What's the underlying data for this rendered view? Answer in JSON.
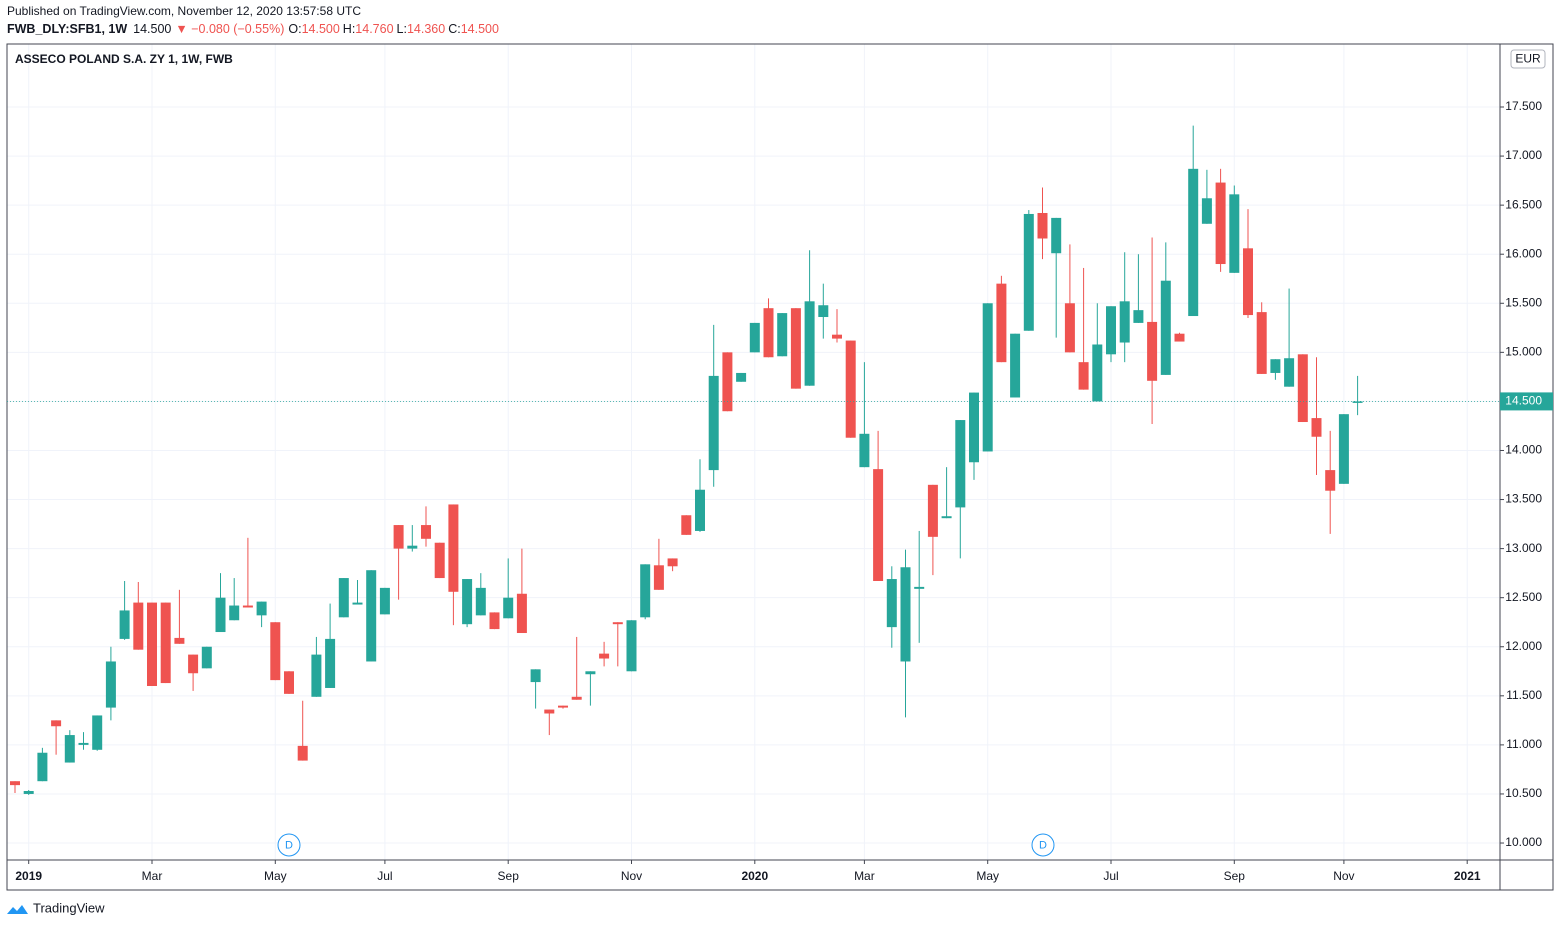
{
  "header": {
    "published": "Published on TradingView.com, November 12, 2020 13:57:58 UTC",
    "symbol": "FWB_DLY:SFB1, 1W",
    "last": "14.500",
    "change": "▼ −0.080 (−0.55%)",
    "ohlc": [
      {
        "key": "O:",
        "value": "14.500"
      },
      {
        "key": "H:",
        "value": "14.760"
      },
      {
        "key": "L:",
        "value": "14.360"
      },
      {
        "key": "C:",
        "value": "14.500"
      }
    ],
    "currency": "EUR",
    "brand": "TradingView"
  },
  "events": [
    {
      "label": "D"
    },
    {
      "label": "D"
    }
  ],
  "chart_data": {
    "type": "candlestick",
    "title": "ASSECO POLAND S.A. ZY 1, 1W, FWB",
    "up_color": "#26a69a",
    "down_color": "#ef5350",
    "grid": true,
    "categories": [
      null,
      "2019",
      null,
      null,
      null,
      null,
      null,
      null,
      null,
      null,
      "Mar",
      null,
      null,
      null,
      null,
      null,
      null,
      null,
      null,
      "May",
      null,
      null,
      null,
      null,
      null,
      null,
      null,
      "Jul",
      null,
      null,
      null,
      null,
      null,
      null,
      null,
      null,
      "Sep",
      null,
      null,
      null,
      null,
      null,
      null,
      null,
      null,
      "Nov",
      null,
      null,
      null,
      null,
      null,
      null,
      null,
      null,
      "2020",
      null,
      null,
      null,
      null,
      null,
      null,
      null,
      "Mar",
      null,
      null,
      null,
      null,
      null,
      null,
      null,
      null,
      "May",
      null,
      null,
      null,
      null,
      null,
      null,
      null,
      null,
      "Jul",
      null,
      null,
      null,
      null,
      null,
      null,
      null,
      null,
      "Sep",
      null,
      null,
      null,
      null,
      null,
      null,
      null,
      "Nov",
      null,
      null,
      null,
      null,
      null,
      null,
      null,
      null,
      "2021"
    ],
    "open": [
      10.63,
      10.5,
      10.63,
      11.25,
      10.82,
      11.0,
      10.95,
      11.38,
      12.08,
      12.45,
      12.45,
      12.45,
      12.09,
      11.92,
      11.78,
      12.15,
      12.27,
      12.42,
      12.32,
      12.25,
      11.75,
      10.99,
      11.49,
      11.58,
      12.3,
      12.43,
      11.85,
      12.33,
      13.24,
      13.0,
      13.24,
      13.06,
      13.45,
      12.23,
      12.32,
      12.35,
      12.29,
      12.54,
      11.64,
      11.36,
      11.4,
      11.49,
      11.72,
      11.93,
      12.25,
      11.75,
      12.3,
      12.83,
      12.9,
      13.34,
      13.18,
      13.8,
      15.0,
      14.7,
      15.0,
      15.45,
      14.96,
      15.45,
      14.66,
      15.36,
      15.18,
      15.12,
      13.83,
      13.81,
      12.2,
      11.85,
      12.59,
      13.65,
      13.31,
      13.42,
      13.88,
      13.99,
      15.7,
      14.54,
      15.22,
      16.42,
      16.01,
      15.5,
      14.9,
      14.5,
      14.98,
      15.1,
      15.3,
      15.31,
      14.77,
      15.19,
      15.37,
      16.31,
      16.73,
      15.81,
      16.06,
      15.41,
      14.79,
      14.65,
      14.98,
      14.33,
      13.8,
      13.66,
      14.5,
      null,
      null,
      null,
      null,
      null,
      null,
      null,
      null
    ],
    "high": [
      10.63,
      10.54,
      10.97,
      11.25,
      11.15,
      11.13,
      11.3,
      12.0,
      12.67,
      12.66,
      12.45,
      12.45,
      12.58,
      11.92,
      12.0,
      12.75,
      12.7,
      13.11,
      12.46,
      12.25,
      11.75,
      11.45,
      12.1,
      12.44,
      12.7,
      12.68,
      12.78,
      12.6,
      13.24,
      13.24,
      13.43,
      13.06,
      13.45,
      12.69,
      12.75,
      12.35,
      12.9,
      13.0,
      11.77,
      11.36,
      11.4,
      12.1,
      11.75,
      12.05,
      12.25,
      12.27,
      12.84,
      13.1,
      12.9,
      13.34,
      13.91,
      15.28,
      15.0,
      14.79,
      15.3,
      15.55,
      15.4,
      15.45,
      16.04,
      15.7,
      15.44,
      15.12,
      14.9,
      14.2,
      12.82,
      12.99,
      13.18,
      13.65,
      13.83,
      14.31,
      14.59,
      15.5,
      15.78,
      15.19,
      16.45,
      16.68,
      16.37,
      16.1,
      15.86,
      15.5,
      15.47,
      16.02,
      16.0,
      16.17,
      16.12,
      15.2,
      17.31,
      16.86,
      16.87,
      16.7,
      16.46,
      15.51,
      14.93,
      15.65,
      14.98,
      14.95,
      14.2,
      14.37,
      14.76,
      null,
      null,
      null,
      null,
      null,
      null,
      null,
      null
    ],
    "low": [
      10.51,
      10.49,
      10.63,
      10.9,
      10.82,
      10.95,
      10.94,
      11.25,
      12.07,
      11.97,
      11.6,
      11.63,
      12.03,
      11.55,
      11.78,
      12.15,
      12.27,
      12.4,
      12.2,
      11.66,
      11.52,
      10.84,
      11.49,
      11.58,
      12.3,
      12.43,
      11.85,
      12.33,
      12.48,
      12.97,
      13.02,
      12.7,
      12.22,
      12.2,
      12.32,
      12.18,
      12.29,
      12.14,
      11.37,
      11.1,
      11.37,
      11.46,
      11.4,
      11.8,
      11.8,
      11.75,
      12.28,
      12.58,
      12.77,
      13.14,
      13.17,
      13.63,
      14.4,
      14.7,
      15.0,
      14.95,
      14.96,
      14.63,
      14.66,
      15.14,
      15.1,
      14.13,
      13.83,
      12.67,
      11.99,
      11.28,
      12.04,
      12.73,
      13.31,
      12.9,
      13.7,
      13.99,
      14.9,
      14.54,
      15.22,
      15.95,
      15.15,
      15.0,
      14.62,
      14.5,
      14.9,
      14.9,
      15.3,
      14.27,
      14.77,
      15.11,
      15.37,
      16.31,
      15.82,
      15.81,
      15.35,
      14.78,
      14.72,
      14.65,
      14.29,
      13.75,
      13.15,
      13.66,
      14.36,
      null,
      null,
      null,
      null,
      null,
      null,
      null,
      null
    ],
    "close": [
      10.59,
      10.53,
      10.92,
      11.19,
      11.1,
      11.02,
      11.3,
      11.85,
      12.37,
      11.97,
      11.6,
      11.63,
      12.03,
      11.73,
      12.0,
      12.5,
      12.42,
      12.4,
      12.46,
      11.66,
      11.52,
      10.84,
      11.92,
      12.08,
      12.7,
      12.45,
      12.78,
      12.6,
      13.0,
      13.03,
      13.1,
      12.7,
      12.56,
      12.69,
      12.6,
      12.18,
      12.5,
      12.14,
      11.77,
      11.32,
      11.38,
      11.46,
      11.75,
      11.88,
      12.23,
      12.27,
      12.84,
      12.58,
      12.82,
      13.14,
      13.6,
      14.76,
      14.4,
      14.79,
      15.3,
      14.95,
      15.4,
      14.63,
      15.52,
      15.48,
      15.14,
      14.13,
      14.17,
      12.67,
      12.69,
      12.81,
      12.61,
      13.12,
      13.33,
      14.31,
      14.59,
      15.5,
      14.9,
      15.19,
      16.41,
      16.16,
      16.37,
      15.0,
      14.62,
      15.08,
      15.47,
      15.52,
      15.43,
      14.71,
      15.73,
      15.11,
      16.87,
      16.57,
      15.9,
      16.61,
      15.38,
      14.78,
      14.93,
      14.94,
      14.29,
      14.14,
      13.59,
      14.37,
      14.5,
      null,
      null,
      null,
      null,
      null,
      null,
      null,
      null
    ],
    "last_price": {
      "value": 14.5,
      "label": "14.500"
    },
    "ylim": [
      9.827,
      18.142
    ],
    "yticks": [
      {
        "value": 10,
        "label": "10.000"
      },
      {
        "value": 10.5,
        "label": "10.500"
      },
      {
        "value": 11,
        "label": "11.000"
      },
      {
        "value": 11.5,
        "label": "11.500"
      },
      {
        "value": 12,
        "label": "12.000"
      },
      {
        "value": 12.5,
        "label": "12.500"
      },
      {
        "value": 13,
        "label": "13.000"
      },
      {
        "value": 13.5,
        "label": "13.500"
      },
      {
        "value": 14,
        "label": "14.000"
      },
      {
        "value": 14.5,
        "label": "14.500"
      },
      {
        "value": 15,
        "label": "15.000"
      },
      {
        "value": 15.5,
        "label": "15.500"
      },
      {
        "value": 16,
        "label": "16.000"
      },
      {
        "value": 16.5,
        "label": "16.500"
      },
      {
        "value": 17,
        "label": "17.000"
      },
      {
        "value": 17.5,
        "label": "17.500"
      }
    ]
  }
}
